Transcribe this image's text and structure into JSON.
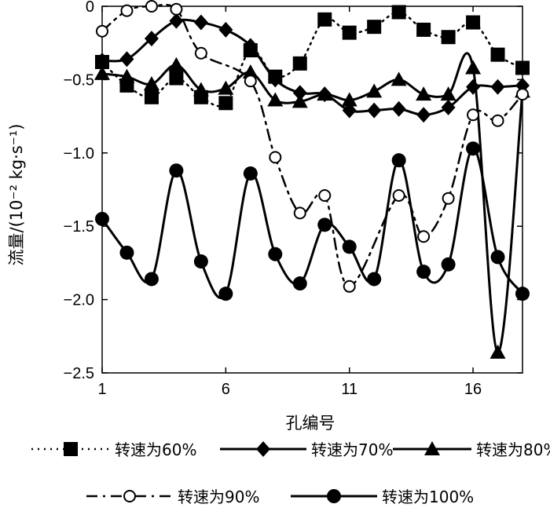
{
  "chart_data": {
    "type": "line",
    "title": "",
    "xlabel": "孔编号",
    "ylabel": "流量/(10⁻² kg·s⁻¹)",
    "xlim": [
      1,
      18
    ],
    "ylim": [
      -2.5,
      0
    ],
    "xticks": [
      1,
      6,
      11,
      16
    ],
    "yticks": [
      0,
      -0.5,
      -1.0,
      -1.5,
      -2.0,
      -2.5
    ],
    "ytick_labels": [
      "0",
      "−0.5",
      "−1.0",
      "−1.5",
      "−2.0",
      "−2.5"
    ],
    "grid": false,
    "legend_position": "bottom",
    "x": [
      1,
      2,
      3,
      4,
      5,
      6,
      7,
      8,
      9,
      10,
      11,
      12,
      13,
      14,
      15,
      16,
      17,
      18
    ],
    "series": [
      {
        "name": "转速为60%",
        "marker": "square",
        "line": "dotted",
        "values": [
          -0.38,
          -0.54,
          -0.62,
          -0.49,
          -0.62,
          -0.66,
          -0.3,
          -0.48,
          -0.39,
          -0.09,
          -0.18,
          -0.14,
          -0.04,
          -0.16,
          -0.21,
          -0.11,
          -0.33,
          -0.42
        ]
      },
      {
        "name": "转速为70%",
        "marker": "diamond",
        "line": "solid",
        "values": [
          -0.37,
          -0.36,
          -0.22,
          -0.1,
          -0.11,
          -0.16,
          -0.27,
          -0.5,
          -0.59,
          -0.6,
          -0.71,
          -0.71,
          -0.7,
          -0.74,
          -0.69,
          -0.55,
          -0.55,
          -0.54
        ]
      },
      {
        "name": "转速为80%",
        "marker": "triangle",
        "line": "solid",
        "values": [
          -0.46,
          -0.48,
          -0.53,
          -0.4,
          -0.57,
          -0.56,
          -0.45,
          -0.64,
          -0.65,
          -0.6,
          -0.64,
          -0.58,
          -0.5,
          -0.6,
          -0.6,
          -0.42,
          -2.36,
          -0.58
        ]
      },
      {
        "name": "转速为90%",
        "marker": "circle-open",
        "line": "dashdot",
        "values": [
          -0.17,
          -0.03,
          0.0,
          -0.02,
          -0.32,
          null,
          -0.51,
          -1.03,
          -1.41,
          -1.29,
          -1.91,
          null,
          -1.29,
          -1.57,
          -1.31,
          -0.74,
          -0.78,
          -0.6
        ]
      },
      {
        "name": "转速为100%",
        "marker": "circle-filled",
        "line": "solid",
        "values": [
          -1.45,
          -1.68,
          -1.86,
          -1.12,
          -1.74,
          -1.96,
          -1.14,
          -1.69,
          -1.89,
          -1.49,
          -1.64,
          -1.86,
          -1.05,
          -1.81,
          -1.76,
          -0.97,
          -1.71,
          -1.96
        ]
      }
    ]
  }
}
